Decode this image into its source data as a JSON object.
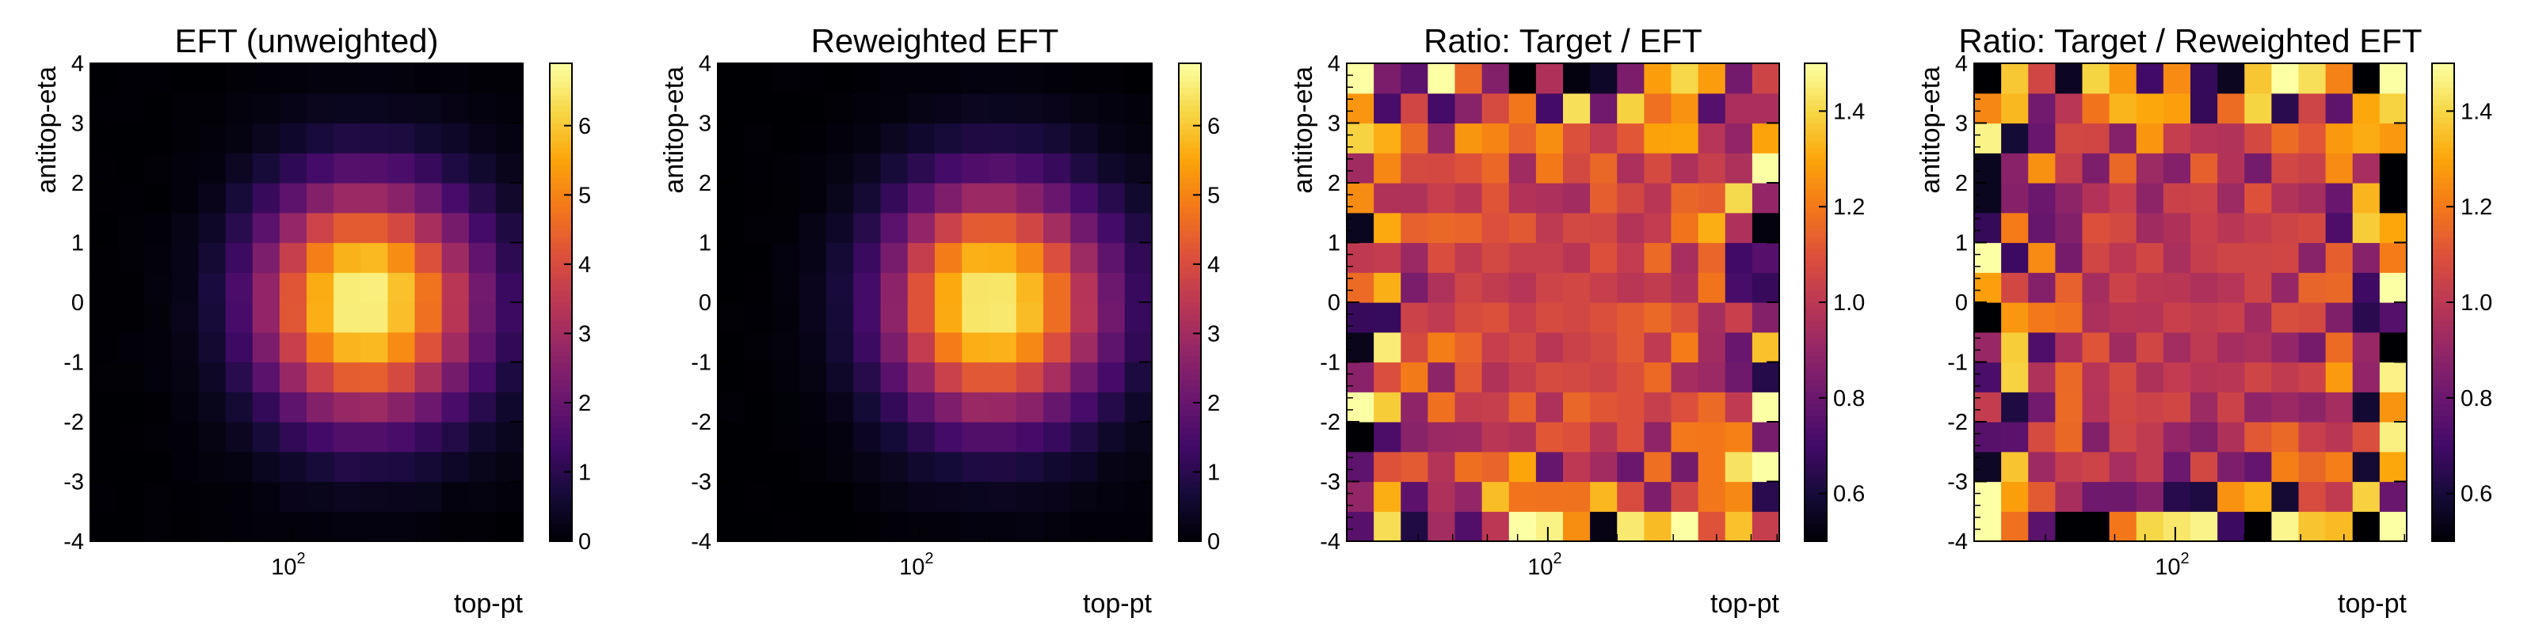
{
  "chart_data": [
    {
      "type": "heatmap",
      "title": "EFT (unweighted)",
      "xlabel": "top-pt",
      "ylabel": "antitop-eta",
      "x_scale": "log",
      "x_tick_labels": [
        "10",
        "2"
      ],
      "ylim": [
        -4,
        4
      ],
      "y_ticks": [
        "-4",
        "-3",
        "-2",
        "-1",
        "0",
        "1",
        "2",
        "3",
        "4"
      ],
      "colormap": "inferno",
      "colorbar_range": [
        0,
        6.9
      ],
      "colorbar_ticks": [
        "0",
        "1",
        "2",
        "3",
        "4",
        "5",
        "6"
      ],
      "bins": [
        16,
        16
      ],
      "peak_value": 6.8,
      "peak_x_bin": 9.5,
      "peak_eta": 0.0
    },
    {
      "type": "heatmap",
      "title": "Reweighted EFT",
      "xlabel": "top-pt",
      "ylabel": "antitop-eta",
      "x_scale": "log",
      "x_tick_labels": [
        "10",
        "2"
      ],
      "ylim": [
        -4,
        4
      ],
      "y_ticks": [
        "-4",
        "-3",
        "-2",
        "-1",
        "0",
        "1",
        "2",
        "3",
        "4"
      ],
      "colormap": "inferno",
      "colorbar_range": [
        0,
        6.9
      ],
      "colorbar_ticks": [
        "0",
        "1",
        "2",
        "3",
        "4",
        "5",
        "6"
      ],
      "bins": [
        16,
        16
      ],
      "peak_value": 6.7,
      "peak_x_bin": 9.5,
      "peak_eta": 0.0
    },
    {
      "type": "heatmap",
      "title": "Ratio: Target / EFT",
      "xlabel": "top-pt",
      "ylabel": "antitop-eta",
      "x_scale": "log",
      "x_tick_labels": [
        "10",
        "2"
      ],
      "ylim": [
        -4,
        4
      ],
      "y_ticks": [
        "-4",
        "-3",
        "-2",
        "-1",
        "0",
        "1",
        "2",
        "3",
        "4"
      ],
      "colormap": "inferno",
      "colorbar_range": [
        0.5,
        1.5
      ],
      "colorbar_ticks": [
        "0.6",
        "0.8",
        "1.0",
        "1.2",
        "1.4"
      ],
      "bins": [
        16,
        16
      ],
      "typical_value": 1.05
    },
    {
      "type": "heatmap",
      "title": "Ratio: Target / Reweighted EFT",
      "xlabel": "top-pt",
      "ylabel": "antitop-eta",
      "x_scale": "log",
      "x_tick_labels": [
        "10",
        "2"
      ],
      "ylim": [
        -4,
        4
      ],
      "y_ticks": [
        "-4",
        "-3",
        "-2",
        "-1",
        "0",
        "1",
        "2",
        "3",
        "4"
      ],
      "colormap": "inferno",
      "colorbar_range": [
        0.5,
        1.5
      ],
      "colorbar_ticks": [
        "0.6",
        "0.8",
        "1.0",
        "1.2",
        "1.4"
      ],
      "bins": [
        16,
        16
      ],
      "typical_value": 1.0
    }
  ]
}
